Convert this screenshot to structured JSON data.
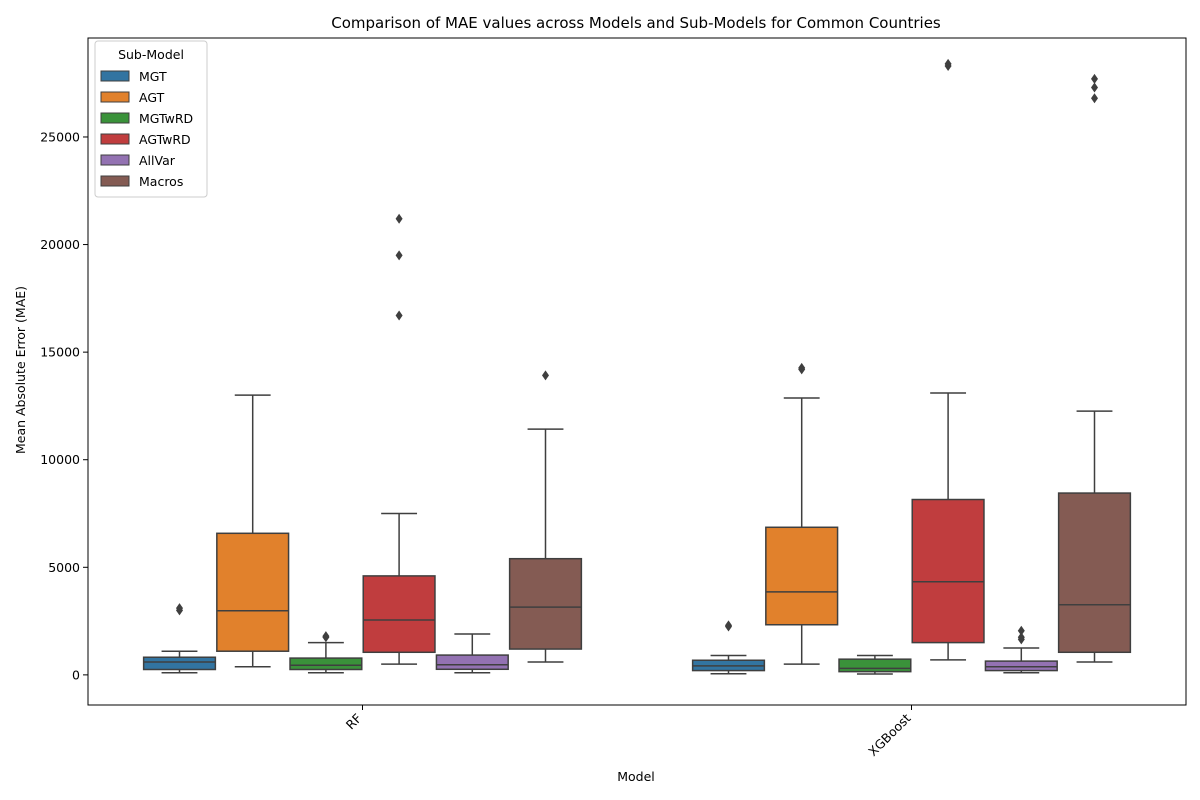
{
  "chart_data": {
    "type": "box",
    "title": "Comparison of MAE values across Models and Sub-Models for Common Countries",
    "xlabel": "Model",
    "ylabel": "Mean Absolute Error (MAE)",
    "ylim": [
      -1400,
      29600
    ],
    "yticks": [
      0,
      5000,
      10000,
      15000,
      20000,
      25000
    ],
    "categories": [
      "RF",
      "XGBoost"
    ],
    "legend": {
      "title": "Sub-Model",
      "position": "top-left"
    },
    "series": [
      {
        "name": "MGT",
        "color": "#3274a1",
        "boxes": [
          {
            "whislo": 100,
            "q1": 250,
            "med": 600,
            "q3": 820,
            "whishi": 1100,
            "fliers": [
              3000,
              3100
            ]
          },
          {
            "whislo": 50,
            "q1": 200,
            "med": 420,
            "q3": 680,
            "whishi": 900,
            "fliers": [
              2250,
              2300
            ]
          }
        ]
      },
      {
        "name": "AGT",
        "color": "#e1812c",
        "boxes": [
          {
            "whislo": 380,
            "q1": 1100,
            "med": 2980,
            "q3": 6580,
            "whishi": 13000,
            "fliers": []
          },
          {
            "whislo": 500,
            "q1": 2330,
            "med": 3860,
            "q3": 6860,
            "whishi": 12870,
            "fliers": [
              14200,
              14270
            ]
          }
        ]
      },
      {
        "name": "MGTwRD",
        "color": "#3a923a",
        "boxes": [
          {
            "whislo": 100,
            "q1": 250,
            "med": 450,
            "q3": 780,
            "whishi": 1500,
            "fliers": [
              1750,
              1800
            ]
          },
          {
            "whislo": 40,
            "q1": 150,
            "med": 300,
            "q3": 730,
            "whishi": 900,
            "fliers": []
          }
        ]
      },
      {
        "name": "AGTwRD",
        "color": "#c03d3e",
        "boxes": [
          {
            "whislo": 500,
            "q1": 1050,
            "med": 2550,
            "q3": 4600,
            "whishi": 7500,
            "fliers": [
              16700,
              19500,
              21200
            ]
          },
          {
            "whislo": 700,
            "q1": 1500,
            "med": 4330,
            "q3": 8150,
            "whishi": 13100,
            "fliers": [
              28300,
              28400
            ]
          }
        ]
      },
      {
        "name": "AllVar",
        "color": "#9372b2",
        "boxes": [
          {
            "whislo": 100,
            "q1": 260,
            "med": 470,
            "q3": 920,
            "whishi": 1900,
            "fliers": []
          },
          {
            "whislo": 100,
            "q1": 200,
            "med": 380,
            "q3": 640,
            "whishi": 1250,
            "fliers": [
              1650,
              1750,
              2050
            ]
          }
        ]
      },
      {
        "name": "Macros",
        "color": "#845b53",
        "boxes": [
          {
            "whislo": 600,
            "q1": 1200,
            "med": 3150,
            "q3": 5400,
            "whishi": 11420,
            "fliers": [
              13920
            ]
          },
          {
            "whislo": 600,
            "q1": 1050,
            "med": 3260,
            "q3": 8450,
            "whishi": 12260,
            "fliers": [
              26800,
              27300,
              27700
            ]
          }
        ]
      }
    ]
  }
}
